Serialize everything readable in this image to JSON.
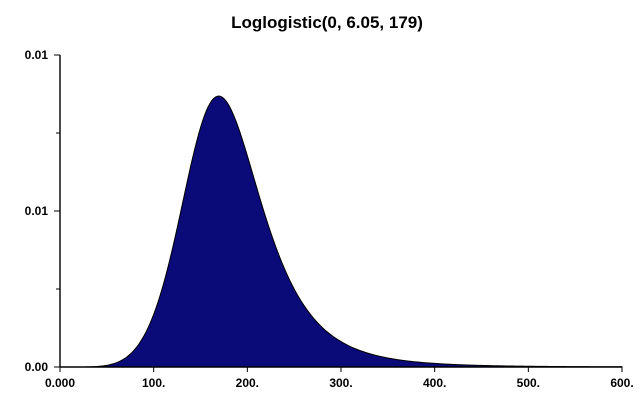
{
  "chart_data": {
    "type": "area",
    "title": "Loglogistic(0, 6.05, 179)",
    "distribution": {
      "name": "Loglogistic",
      "gamma": 0,
      "alpha": 6.05,
      "beta": 179
    },
    "xlabel": "",
    "ylabel": "",
    "xlim": [
      0,
      600
    ],
    "ylim": [
      0,
      0.01
    ],
    "x_ticks": [
      0,
      100,
      200,
      300,
      400,
      500,
      600
    ],
    "x_tick_labels": [
      "0.000",
      "100.",
      "200.",
      "300.",
      "400.",
      "500.",
      "600."
    ],
    "y_tick_labels": [
      "0.00",
      "0.01",
      "0.01"
    ],
    "y_tick_values": [
      0,
      0.005,
      0.01
    ],
    "fill_color": "#0a0a78",
    "grid": false,
    "peak": {
      "x": 170,
      "y": 0.0086
    }
  }
}
